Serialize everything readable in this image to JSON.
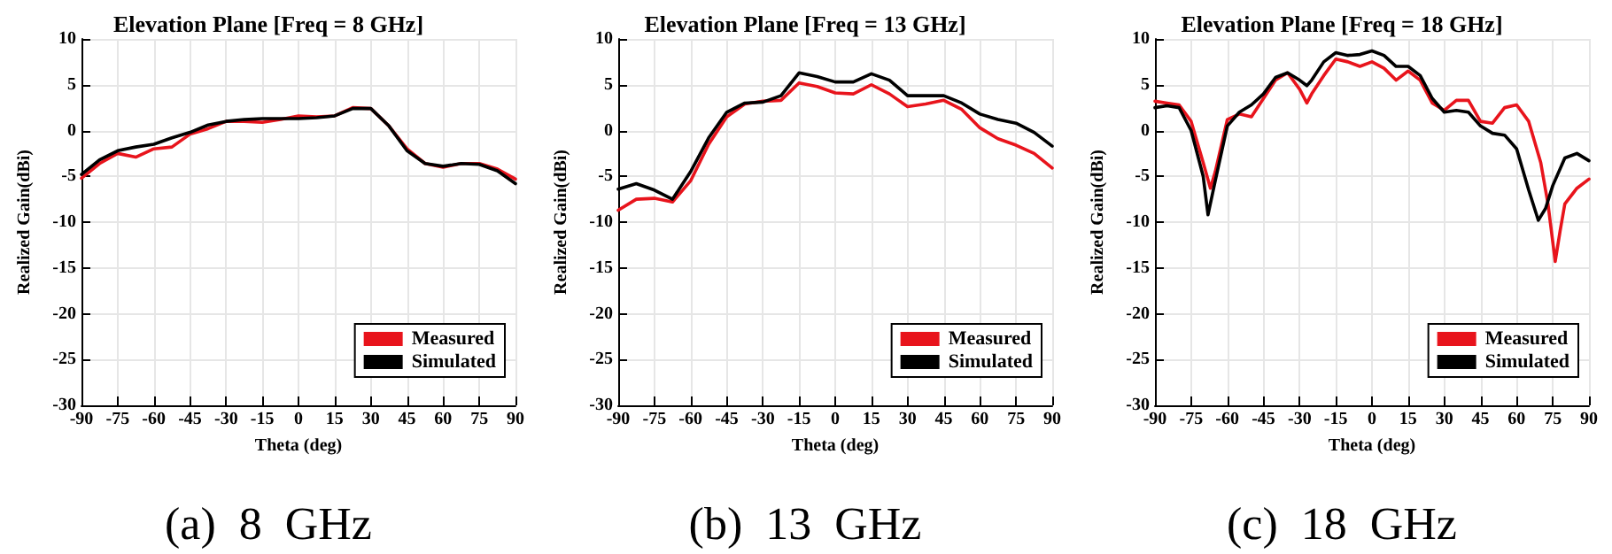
{
  "chart_data": [
    {
      "type": "line",
      "title": "Elevation Plane [Freq = 8 GHz]",
      "xlabel": "Theta (deg)",
      "ylabel": "Realized Gain(dBi)",
      "annotations": [
        "(a)  8  GHz"
      ],
      "xlim": [
        -90,
        90
      ],
      "xticks": [
        -90,
        -75,
        -60,
        -45,
        -30,
        -15,
        0,
        15,
        30,
        45,
        60,
        75,
        90
      ],
      "ylim": [
        -30,
        10
      ],
      "yticks": [
        -30,
        -25,
        -20,
        -15,
        -10,
        -5,
        0,
        5,
        10
      ],
      "grid": true,
      "legend": "bottom right",
      "marker": "none",
      "line_style": "solid",
      "series": [
        {
          "name": "Measured",
          "color": "#e8141c",
          "x": [
            -90,
            -82.5,
            -75,
            -67.5,
            -60,
            -52.5,
            -45,
            -37.5,
            -30,
            -22.5,
            -15,
            -7.5,
            0,
            7.5,
            15,
            22.5,
            30,
            37.5,
            45,
            52.5,
            60,
            67.5,
            75,
            82.5,
            90
          ],
          "values": [
            -5.2,
            -3.6,
            -2.5,
            -2.9,
            -2,
            -1.8,
            -0.4,
            0.2,
            1,
            1,
            0.9,
            1.2,
            1.6,
            1.5,
            1.6,
            2.5,
            2.4,
            0.5,
            -2,
            -3.6,
            -4,
            -3.6,
            -3.6,
            -4.2,
            -5.3
          ]
        },
        {
          "name": "Simulated",
          "color": "#000000",
          "x": [
            -90,
            -82.5,
            -75,
            -67.5,
            -60,
            -52.5,
            -45,
            -37.5,
            -30,
            -22.5,
            -15,
            -7.5,
            0,
            7.5,
            15,
            22.5,
            30,
            37.5,
            45,
            52.5,
            60,
            67.5,
            75,
            82.5,
            90
          ],
          "values": [
            -4.8,
            -3.2,
            -2.2,
            -1.8,
            -1.5,
            -0.8,
            -0.2,
            0.6,
            1,
            1.2,
            1.3,
            1.3,
            1.3,
            1.4,
            1.6,
            2.4,
            2.4,
            0.5,
            -2.2,
            -3.6,
            -3.9,
            -3.6,
            -3.7,
            -4.4,
            -5.8
          ]
        }
      ]
    },
    {
      "type": "line",
      "title": "Elevation Plane [Freq = 13 GHz]",
      "xlabel": "Theta (deg)",
      "ylabel": "Realized Gain(dBi)",
      "annotations": [
        "(b)  13  GHz"
      ],
      "xlim": [
        -90,
        90
      ],
      "xticks": [
        -90,
        -75,
        -60,
        -45,
        -30,
        -15,
        0,
        15,
        30,
        45,
        60,
        75,
        90
      ],
      "ylim": [
        -30,
        10
      ],
      "yticks": [
        -30,
        -25,
        -20,
        -15,
        -10,
        -5,
        0,
        5,
        10
      ],
      "grid": true,
      "legend": "bottom right",
      "marker": "none",
      "line_style": "solid",
      "series": [
        {
          "name": "Measured",
          "color": "#e8141c",
          "x": [
            -90,
            -82.5,
            -75,
            -67.5,
            -60,
            -52.5,
            -45,
            -37.5,
            -30,
            -22.5,
            -15,
            -7.5,
            0,
            7.5,
            15,
            22.5,
            30,
            37.5,
            45,
            52.5,
            60,
            67.5,
            75,
            82.5,
            90
          ],
          "values": [
            -8.7,
            -7.5,
            -7.4,
            -7.8,
            -5.5,
            -1.5,
            1.5,
            2.9,
            3.2,
            3.3,
            5.2,
            4.8,
            4.1,
            4,
            5,
            4,
            2.6,
            2.9,
            3.3,
            2.3,
            0.3,
            -0.9,
            -1.6,
            -2.5,
            -4.1
          ]
        },
        {
          "name": "Simulated",
          "color": "#000000",
          "x": [
            -90,
            -82.5,
            -75,
            -67.5,
            -60,
            -52.5,
            -45,
            -37.5,
            -30,
            -22.5,
            -15,
            -7.5,
            0,
            7.5,
            15,
            22.5,
            30,
            37.5,
            45,
            52.5,
            60,
            67.5,
            75,
            82.5,
            90
          ],
          "values": [
            -6.4,
            -5.8,
            -6.5,
            -7.5,
            -4.5,
            -0.8,
            2,
            3,
            3.1,
            3.8,
            6.3,
            5.9,
            5.3,
            5.3,
            6.2,
            5.5,
            3.8,
            3.8,
            3.8,
            3,
            1.8,
            1.2,
            0.8,
            -0.2,
            -1.7
          ]
        }
      ]
    },
    {
      "type": "line",
      "title": "Elevation Plane [Freq = 18 GHz]",
      "xlabel": "Theta (deg)",
      "ylabel": "Realized Gain(dBi)",
      "annotations": [
        "(c)  18  GHz"
      ],
      "xlim": [
        -90,
        90
      ],
      "xticks": [
        -90,
        -75,
        -60,
        -45,
        -30,
        -15,
        0,
        15,
        30,
        45,
        60,
        75,
        90
      ],
      "ylim": [
        -30,
        10
      ],
      "yticks": [
        -30,
        -25,
        -20,
        -15,
        -10,
        -5,
        0,
        5,
        10
      ],
      "grid": true,
      "legend": "bottom right",
      "marker": "none",
      "line_style": "solid",
      "series": [
        {
          "name": "Measured",
          "color": "#e8141c",
          "x": [
            -90,
            -85,
            -80,
            -75,
            -70,
            -67,
            -65,
            -60,
            -55,
            -50,
            -45,
            -40,
            -35,
            -30,
            -27,
            -25,
            -20,
            -15,
            -10,
            -5,
            0,
            5,
            10,
            15,
            20,
            25,
            30,
            35,
            40,
            45,
            50,
            55,
            60,
            65,
            70,
            73,
            76,
            78,
            80,
            85,
            90
          ],
          "values": [
            3.2,
            3,
            2.8,
            1,
            -3.5,
            -6.3,
            -4.5,
            1.2,
            1.8,
            1.5,
            3.5,
            5.5,
            6.3,
            4.5,
            3,
            4,
            6,
            7.8,
            7.5,
            7,
            7.5,
            6.8,
            5.5,
            6.5,
            5.5,
            3,
            2.2,
            3.3,
            3.3,
            1,
            0.8,
            2.5,
            2.8,
            1,
            -3.5,
            -8,
            -14.3,
            -11,
            -8,
            -6.3,
            -5.3
          ]
        },
        {
          "name": "Simulated",
          "color": "#000000",
          "x": [
            -90,
            -85,
            -80,
            -75,
            -70,
            -68,
            -65,
            -60,
            -55,
            -50,
            -45,
            -40,
            -35,
            -30,
            -27,
            -25,
            -20,
            -15,
            -10,
            -5,
            0,
            5,
            10,
            15,
            20,
            25,
            30,
            35,
            40,
            45,
            50,
            55,
            60,
            65,
            69,
            72,
            75,
            80,
            85,
            90
          ],
          "values": [
            2.5,
            2.7,
            2.5,
            0,
            -5,
            -9.2,
            -5.5,
            0.5,
            2,
            2.8,
            4,
            5.8,
            6.3,
            5.5,
            4.9,
            5.5,
            7.5,
            8.5,
            8.2,
            8.3,
            8.7,
            8.2,
            7,
            7,
            6,
            3.5,
            2,
            2.2,
            2,
            0.5,
            -0.3,
            -0.5,
            -2,
            -6.5,
            -9.8,
            -8.5,
            -6,
            -3,
            -2.5,
            -3.3
          ]
        }
      ]
    }
  ]
}
